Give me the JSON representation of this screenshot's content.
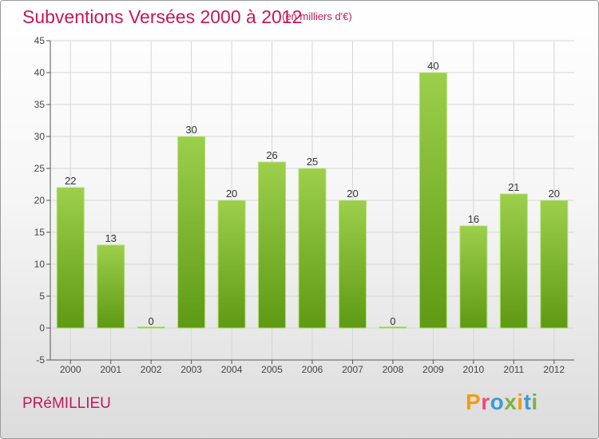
{
  "header": {
    "title": "Subventions Versées 2000 à 2012",
    "unit": "(en milliers d'€)"
  },
  "footer": {
    "place": "PRéMILLIEU",
    "logo_letters": [
      "P",
      "r",
      "o",
      "x",
      "i",
      "t",
      "i"
    ],
    "logo_colors": [
      "#f39c12",
      "#e94e77",
      "#3a9bd9",
      "#7cb342",
      "#f39c12",
      "#3a9bd9",
      "#7cb342"
    ]
  },
  "chart_data": {
    "type": "bar",
    "categories": [
      "2000",
      "2001",
      "2002",
      "2003",
      "2004",
      "2005",
      "2006",
      "2007",
      "2008",
      "2009",
      "2010",
      "2011",
      "2012"
    ],
    "values": [
      22,
      13,
      0,
      30,
      20,
      26,
      25,
      20,
      0,
      40,
      16,
      21,
      20
    ],
    "ylim": [
      -5,
      45
    ],
    "yticks": [
      -5,
      0,
      5,
      10,
      15,
      20,
      25,
      30,
      35,
      40,
      45
    ],
    "grid": true,
    "colors": {
      "bar_top": "#9ccf4c",
      "bar_bottom": "#5f9a14",
      "grid": "#d6d6d6",
      "axis": "#555555"
    }
  }
}
